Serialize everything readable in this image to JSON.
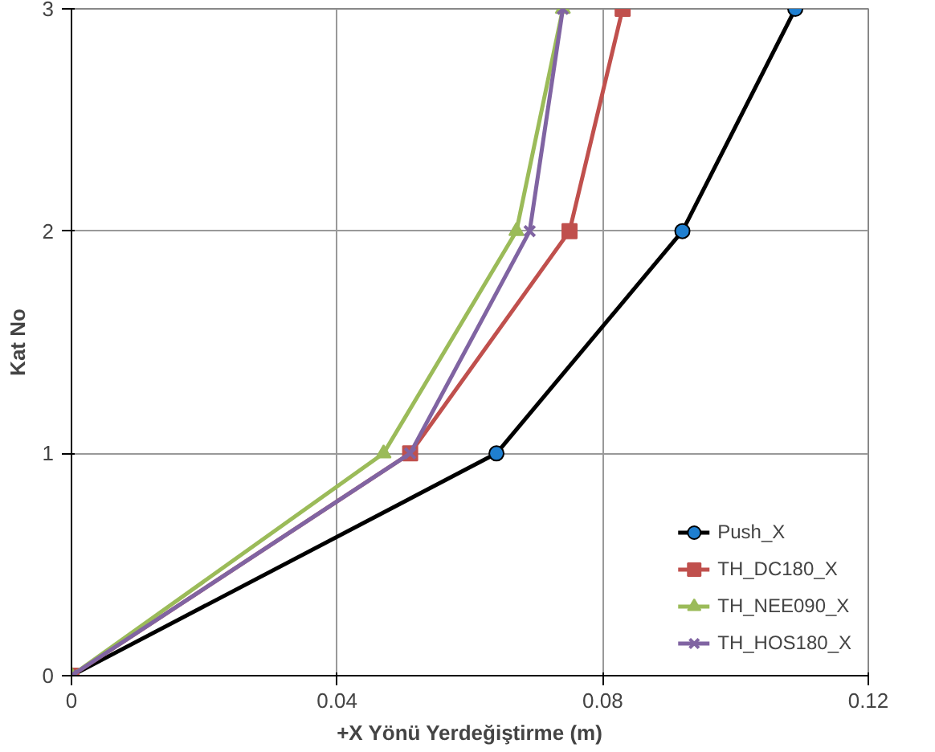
{
  "chart_data": {
    "type": "line",
    "xlabel": "+X Yönü Yerdeğiştirme (m)",
    "ylabel": "Kat No",
    "xlim": [
      0,
      0.12
    ],
    "xticks": [
      0,
      0.04,
      0.08,
      0.12
    ],
    "ylim": [
      0,
      3
    ],
    "yticks": [
      0,
      1,
      2,
      3
    ],
    "grid": true,
    "legend": "bottom right",
    "series": [
      {
        "name": "Push_X",
        "color": "#000000",
        "marker": "circle",
        "x": [
          0,
          0.064,
          0.092,
          0.109
        ],
        "values": [
          0,
          1,
          2,
          3
        ]
      },
      {
        "name": "TH_DC180_X",
        "color": "#c0504d",
        "marker": "square",
        "x": [
          0,
          0.051,
          0.075,
          0.083
        ],
        "values": [
          0,
          1,
          2,
          3
        ]
      },
      {
        "name": "TH_NEE090_X",
        "color": "#9bbb59",
        "marker": "triangle",
        "x": [
          0,
          0.047,
          0.067,
          0.074
        ],
        "values": [
          0,
          1,
          2,
          3
        ]
      },
      {
        "name": "TH_HOS180_X",
        "color": "#8064a2",
        "marker": "cross",
        "x": [
          0,
          0.051,
          0.069,
          0.074
        ],
        "values": [
          0,
          1,
          2,
          3
        ]
      }
    ]
  }
}
